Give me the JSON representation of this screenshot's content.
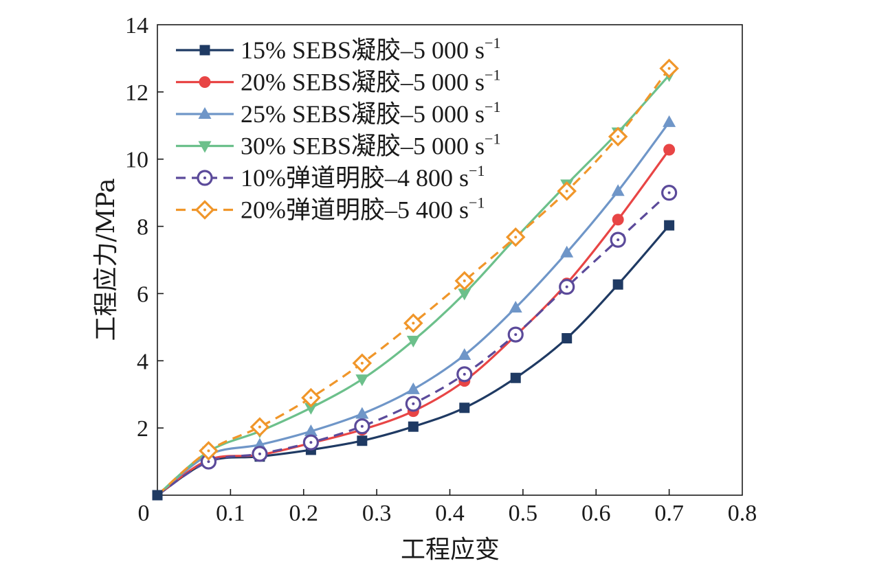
{
  "chart_data": {
    "type": "line",
    "xlabel": "工程应变",
    "ylabel": "工程应力/MPa",
    "xlim": [
      0,
      0.8
    ],
    "ylim": [
      0,
      14
    ],
    "xticks": [
      "0",
      "0.1",
      "0.2",
      "0.3",
      "0.4",
      "0.5",
      "0.6",
      "0.7",
      "0.8"
    ],
    "yticks": [
      "2",
      "4",
      "6",
      "8",
      "10",
      "12",
      "14"
    ],
    "grid": false,
    "legend_position": "top-left",
    "series": [
      {
        "name": "15% SEBS凝胶–5 000 s",
        "superscript": "−1",
        "color": "#1f3a63",
        "marker": "square",
        "dash": "solid",
        "x": [
          0.0,
          0.07,
          0.14,
          0.21,
          0.28,
          0.35,
          0.42,
          0.49,
          0.56,
          0.63,
          0.7
        ],
        "y": [
          0.0,
          1.0,
          1.15,
          1.35,
          1.62,
          2.04,
          2.6,
          3.49,
          4.67,
          6.27,
          8.03
        ]
      },
      {
        "name": "20% SEBS凝胶–5 000 s",
        "superscript": "−1",
        "color": "#e84545",
        "marker": "circle",
        "dash": "solid",
        "x": [
          0.0,
          0.07,
          0.14,
          0.21,
          0.28,
          0.35,
          0.42,
          0.49,
          0.56,
          0.63,
          0.7
        ],
        "y": [
          0.0,
          1.05,
          1.2,
          1.55,
          1.95,
          2.5,
          3.4,
          4.75,
          6.3,
          8.2,
          10.28
        ]
      },
      {
        "name": "25% SEBS凝胶–5 000 s",
        "superscript": "−1",
        "color": "#6f96c8",
        "marker": "triangle-up",
        "dash": "solid",
        "x": [
          0.0,
          0.07,
          0.14,
          0.21,
          0.28,
          0.35,
          0.42,
          0.49,
          0.56,
          0.63,
          0.7
        ],
        "y": [
          0.0,
          1.2,
          1.5,
          1.9,
          2.42,
          3.15,
          4.17,
          5.58,
          7.22,
          9.05,
          11.1
        ]
      },
      {
        "name": "30% SEBS凝胶–5 000 s",
        "superscript": "−1",
        "color": "#6cc08b",
        "marker": "triangle-down",
        "dash": "solid",
        "x": [
          0.0,
          0.07,
          0.14,
          0.21,
          0.28,
          0.35,
          0.42,
          0.49,
          0.56,
          0.63,
          0.7
        ],
        "y": [
          0.0,
          1.3,
          1.9,
          2.6,
          3.45,
          4.6,
          6.0,
          7.65,
          9.25,
          10.8,
          12.5
        ]
      },
      {
        "name": "10%弹道明胶–4 800 s",
        "superscript": "−1",
        "color": "#5b4a9a",
        "marker": "circle-dot-open",
        "dash": "dashed",
        "x": [
          0.0,
          0.07,
          0.14,
          0.21,
          0.28,
          0.35,
          0.42,
          0.49,
          0.56,
          0.63,
          0.7
        ],
        "y": [
          0.0,
          1.0,
          1.23,
          1.57,
          2.05,
          2.72,
          3.6,
          4.78,
          6.2,
          7.6,
          9.0
        ]
      },
      {
        "name": "20%弹道明胶–5 400 s",
        "superscript": "−1",
        "color": "#f0962a",
        "marker": "diamond-dot-open",
        "dash": "dashed",
        "x": [
          0.0,
          0.07,
          0.14,
          0.21,
          0.28,
          0.35,
          0.42,
          0.49,
          0.56,
          0.63,
          0.7
        ],
        "y": [
          0.0,
          1.32,
          2.03,
          2.9,
          3.93,
          5.12,
          6.38,
          7.68,
          9.05,
          10.67,
          12.7
        ]
      }
    ]
  }
}
